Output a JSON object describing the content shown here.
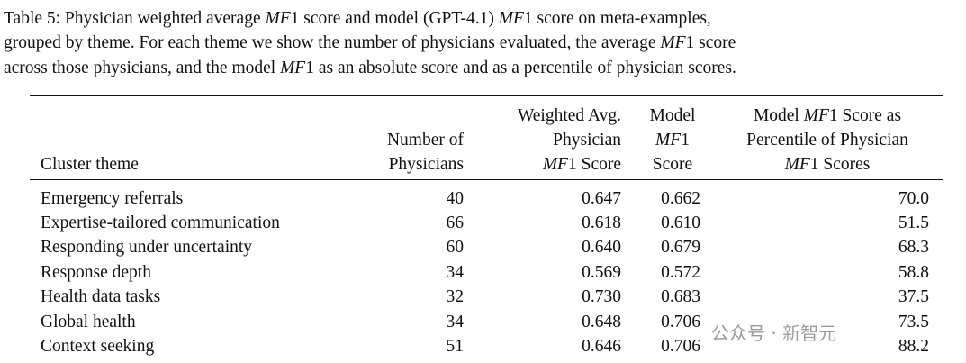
{
  "caption": [
    "Table 5: Physician weighted average MF1 score and model (GPT-4.1) MF1 score on meta-examples,",
    "grouped by theme. For each theme we show the number of physicians evaluated, the average MF1 score",
    "across those physicians, and the model MF1 as an absolute score and as a percentile of physician scores."
  ],
  "table": {
    "headers": [
      [
        "Cluster theme"
      ],
      [
        "Number of",
        "Physicians"
      ],
      [
        "Weighted Avg.",
        "Physician",
        "MF1 Score"
      ],
      [
        "Model",
        "MF1",
        "Score"
      ],
      [
        "Model MF1 Score as",
        "Percentile of Physician",
        "MF1 Scores"
      ]
    ],
    "rows": [
      [
        "Emergency referrals",
        "40",
        "0.647",
        "0.662",
        "70.0"
      ],
      [
        "Expertise-tailored communication",
        "66",
        "0.618",
        "0.610",
        "51.5"
      ],
      [
        "Responding under uncertainty",
        "60",
        "0.640",
        "0.679",
        "68.3"
      ],
      [
        "Response depth",
        "34",
        "0.569",
        "0.572",
        "58.8"
      ],
      [
        "Health data tasks",
        "32",
        "0.730",
        "0.683",
        "37.5"
      ],
      [
        "Global health",
        "34",
        "0.648",
        "0.706",
        "73.5"
      ],
      [
        "Context seeking",
        "51",
        "0.646",
        "0.706",
        "88.2"
      ]
    ]
  },
  "watermark": "公众号 · 新智元"
}
